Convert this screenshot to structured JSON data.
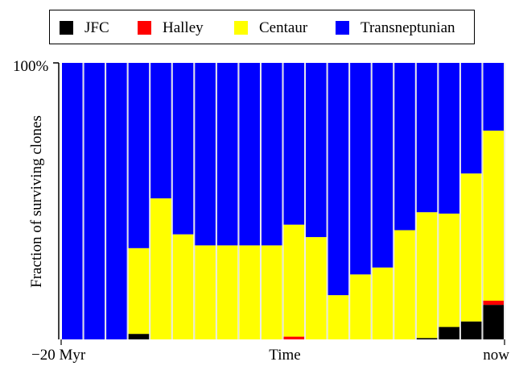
{
  "chart_data": {
    "type": "bar",
    "stacked": true,
    "normalized": true,
    "ylabel": "Fraction of surviving clones",
    "xlabel": "Time",
    "x_tick_labels": {
      "left": "−20 Myr",
      "right": "now"
    },
    "y_tick_label": "100%",
    "ylim": [
      0,
      1
    ],
    "legend_position": "top",
    "grid": false,
    "series": [
      {
        "name": "JFC",
        "color": "#000000",
        "values": [
          0,
          0,
          0,
          0.02,
          0,
          0,
          0,
          0,
          0,
          0,
          0,
          0,
          0,
          0,
          0,
          0,
          0.005,
          0.045,
          0.065,
          0.125
        ]
      },
      {
        "name": "Halley",
        "color": "#ff0000",
        "values": [
          0,
          0,
          0,
          0,
          0,
          0,
          0,
          0,
          0,
          0,
          0.01,
          0,
          0,
          0,
          0,
          0,
          0,
          0,
          0,
          0.015
        ]
      },
      {
        "name": "Centaur",
        "color": "#ffff00",
        "values": [
          0,
          0,
          0,
          0.31,
          0.51,
          0.38,
          0.34,
          0.34,
          0.34,
          0.34,
          0.405,
          0.37,
          0.16,
          0.235,
          0.26,
          0.395,
          0.455,
          0.41,
          0.535,
          0.615
        ]
      },
      {
        "name": "Transneptunian",
        "color": "#0000ff",
        "values": [
          1,
          1,
          1,
          0.67,
          0.49,
          0.62,
          0.66,
          0.66,
          0.66,
          0.66,
          0.585,
          0.63,
          0.84,
          0.765,
          0.74,
          0.605,
          0.54,
          0.545,
          0.4,
          0.245
        ]
      }
    ]
  }
}
